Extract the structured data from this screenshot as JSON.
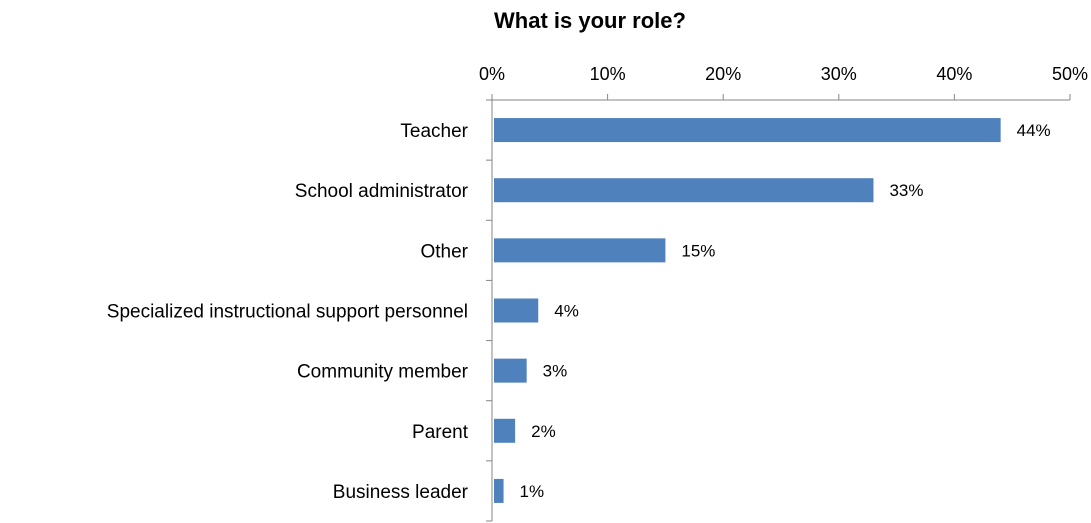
{
  "chart_data": {
    "type": "bar",
    "orientation": "horizontal",
    "title": "What is your role?",
    "categories": [
      "Teacher",
      "School administrator",
      "Other",
      "Specialized instructional support personnel",
      "Community member",
      "Parent",
      "Business leader"
    ],
    "values": [
      44,
      33,
      15,
      4,
      3,
      2,
      1
    ],
    "data_labels": [
      "44%",
      "33%",
      "15%",
      "4%",
      "3%",
      "2%",
      "1%"
    ],
    "value_axis": {
      "range": [
        0,
        50
      ],
      "ticks": [
        0,
        10,
        20,
        30,
        40,
        50
      ],
      "tick_labels": [
        "0%",
        "10%",
        "20%",
        "30%",
        "40%",
        "50%"
      ],
      "position": "top"
    },
    "xlabel": "",
    "ylabel": "",
    "grid": false,
    "legend": "none",
    "colors": {
      "bar": "#4F81BD",
      "axis": "#868686",
      "text": "#000000"
    }
  }
}
